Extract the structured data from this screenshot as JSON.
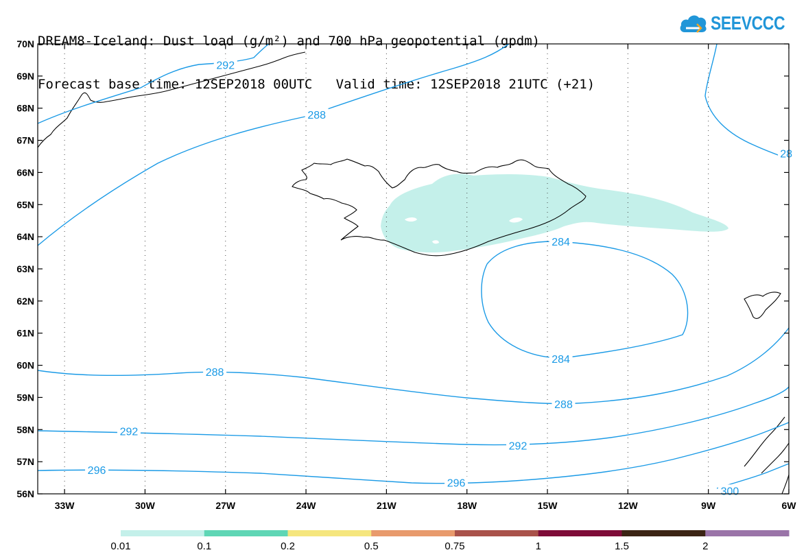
{
  "title": {
    "line1": "DREAM8-Iceland: Dust load (g/m²) and 700 hPa geopotential (gpdm)",
    "line2": "Forecast base time: 12SEP2018 00UTC   Valid time: 12SEP2018 21UTC (+21)"
  },
  "logo": {
    "text": "SEEVCCC",
    "icon": "cloud-icon"
  },
  "map": {
    "lat_labels": [
      "70N",
      "69N",
      "68N",
      "67N",
      "66N",
      "65N",
      "64N",
      "63N",
      "62N",
      "61N",
      "60N",
      "59N",
      "58N",
      "57N",
      "56N"
    ],
    "lon_labels": [
      "33W",
      "30W",
      "27W",
      "24W",
      "21W",
      "18W",
      "15W",
      "12W",
      "9W",
      "6W"
    ],
    "lon_range": [
      -34,
      -6
    ],
    "lat_range": [
      56,
      70
    ],
    "contour_color": "#1a9ae6",
    "contour_labels": [
      {
        "text": "292",
        "lon": -27.0,
        "lat": 69.35
      },
      {
        "text": "288",
        "lon": -23.6,
        "lat": 67.8
      },
      {
        "text": "28",
        "lon": -6.1,
        "lat": 66.6
      },
      {
        "text": "284",
        "lon": -14.5,
        "lat": 63.85
      },
      {
        "text": "284",
        "lon": -14.5,
        "lat": 60.2
      },
      {
        "text": "288",
        "lon": -27.4,
        "lat": 59.8
      },
      {
        "text": "288",
        "lon": -14.4,
        "lat": 58.8
      },
      {
        "text": "292",
        "lon": -30.6,
        "lat": 57.95
      },
      {
        "text": "292",
        "lon": -16.1,
        "lat": 57.5
      },
      {
        "text": "296",
        "lon": -31.8,
        "lat": 56.75
      },
      {
        "text": "296",
        "lon": -18.4,
        "lat": 56.35
      },
      {
        "text": "300",
        "lon": -8.2,
        "lat": 56.1
      }
    ]
  },
  "colorbar": {
    "colors": [
      "#c4f0ea",
      "#5fd6b5",
      "#f5e67e",
      "#e89a6c",
      "#a9524a",
      "#7e0c38",
      "#3b2414",
      "#9a74a8"
    ],
    "labels": [
      "0.01",
      "0.1",
      "0.2",
      "0.5",
      "0.75",
      "1",
      "1.5",
      "2"
    ]
  }
}
